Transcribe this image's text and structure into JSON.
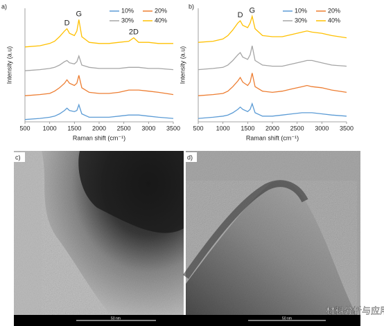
{
  "chart_data": [
    {
      "type": "line",
      "xlabel": "Raman shift (cm⁻¹)",
      "ylabel": "Intensity (a.u)",
      "x": [
        500,
        800,
        1000,
        1100,
        1200,
        1300,
        1350,
        1400,
        1500,
        1550,
        1590,
        1650,
        1800,
        2000,
        2200,
        2400,
        2600,
        2700,
        2800,
        3000,
        3200,
        3500
      ],
      "xlim": [
        500,
        3500
      ],
      "xticks": [
        500,
        1000,
        1500,
        2000,
        2500,
        3000,
        3500
      ],
      "ylim": [
        0,
        10
      ],
      "legend": "upper right",
      "series": [
        {
          "name": "10%",
          "color": "#5b9bd5",
          "values": [
            0.2,
            0.3,
            0.4,
            0.5,
            0.7,
            1.0,
            1.2,
            1.0,
            0.9,
            1.0,
            1.5,
            0.7,
            0.4,
            0.4,
            0.4,
            0.5,
            0.6,
            0.6,
            0.6,
            0.5,
            0.4,
            0.3
          ]
        },
        {
          "name": "20%",
          "color": "#ed7d31",
          "values": [
            2.3,
            2.4,
            2.5,
            2.7,
            3.0,
            3.4,
            3.7,
            3.4,
            3.2,
            3.4,
            4.1,
            3.0,
            2.6,
            2.5,
            2.5,
            2.6,
            2.8,
            2.8,
            2.8,
            2.7,
            2.6,
            2.4
          ]
        },
        {
          "name": "30%",
          "color": "#a5a5a5",
          "values": [
            4.5,
            4.6,
            4.7,
            4.8,
            5.0,
            5.3,
            5.4,
            5.2,
            5.1,
            5.3,
            5.8,
            5.0,
            4.8,
            4.7,
            4.7,
            4.7,
            4.8,
            4.8,
            4.8,
            4.7,
            4.7,
            4.6
          ]
        },
        {
          "name": "40%",
          "color": "#ffc000",
          "values": [
            6.6,
            6.7,
            6.9,
            7.1,
            7.5,
            8.0,
            8.2,
            7.8,
            7.6,
            8.0,
            9.0,
            7.5,
            7.0,
            6.9,
            6.9,
            7.0,
            7.1,
            7.4,
            7.0,
            7.0,
            6.9,
            6.9
          ]
        }
      ],
      "annotations": [
        {
          "text": "D",
          "x": 1350
        },
        {
          "text": "G",
          "x": 1590
        },
        {
          "text": "2D",
          "x": 2700
        }
      ]
    },
    {
      "type": "line",
      "xlabel": "Raman shift (cm⁻¹)",
      "ylabel": "Intensity (a.u)",
      "x": [
        500,
        800,
        1000,
        1100,
        1200,
        1300,
        1350,
        1400,
        1500,
        1550,
        1590,
        1650,
        1800,
        2000,
        2200,
        2400,
        2600,
        2700,
        2800,
        3000,
        3200,
        3500
      ],
      "xlim": [
        500,
        3500
      ],
      "xticks": [
        500,
        1000,
        1500,
        2000,
        2500,
        3000,
        3500
      ],
      "ylim": [
        0,
        10
      ],
      "legend": "upper right",
      "series": [
        {
          "name": "10%",
          "color": "#5b9bd5",
          "values": [
            0.3,
            0.4,
            0.5,
            0.6,
            0.8,
            1.1,
            1.3,
            1.1,
            0.9,
            1.1,
            1.6,
            0.8,
            0.5,
            0.5,
            0.6,
            0.7,
            0.8,
            0.8,
            0.8,
            0.7,
            0.6,
            0.5
          ]
        },
        {
          "name": "20%",
          "color": "#ed7d31",
          "values": [
            2.3,
            2.4,
            2.5,
            2.7,
            3.1,
            3.6,
            3.9,
            3.5,
            3.2,
            3.5,
            4.3,
            3.1,
            2.7,
            2.6,
            2.7,
            2.9,
            3.1,
            3.2,
            3.1,
            3.0,
            2.8,
            2.6
          ]
        },
        {
          "name": "30%",
          "color": "#a5a5a5",
          "values": [
            4.6,
            4.7,
            4.8,
            5.0,
            5.4,
            5.9,
            6.1,
            5.7,
            5.5,
            5.9,
            6.7,
            5.4,
            5.0,
            4.9,
            4.9,
            5.1,
            5.3,
            5.4,
            5.4,
            5.2,
            5.0,
            4.9
          ]
        },
        {
          "name": "40%",
          "color": "#ffc000",
          "values": [
            7.0,
            7.1,
            7.3,
            7.6,
            8.1,
            8.7,
            8.9,
            8.5,
            8.3,
            8.7,
            9.3,
            8.2,
            7.6,
            7.5,
            7.5,
            7.7,
            7.9,
            8.0,
            7.9,
            7.8,
            7.6,
            7.4
          ]
        }
      ],
      "annotations": [
        {
          "text": "D",
          "x": 1350
        },
        {
          "text": "G",
          "x": 1590
        }
      ]
    }
  ],
  "figure": {
    "panels": [
      "a)",
      "b)",
      "c)",
      "d)"
    ],
    "scale_bars": [
      "50 nm",
      "50 nm"
    ],
    "watermark": "材料分析与应用"
  }
}
